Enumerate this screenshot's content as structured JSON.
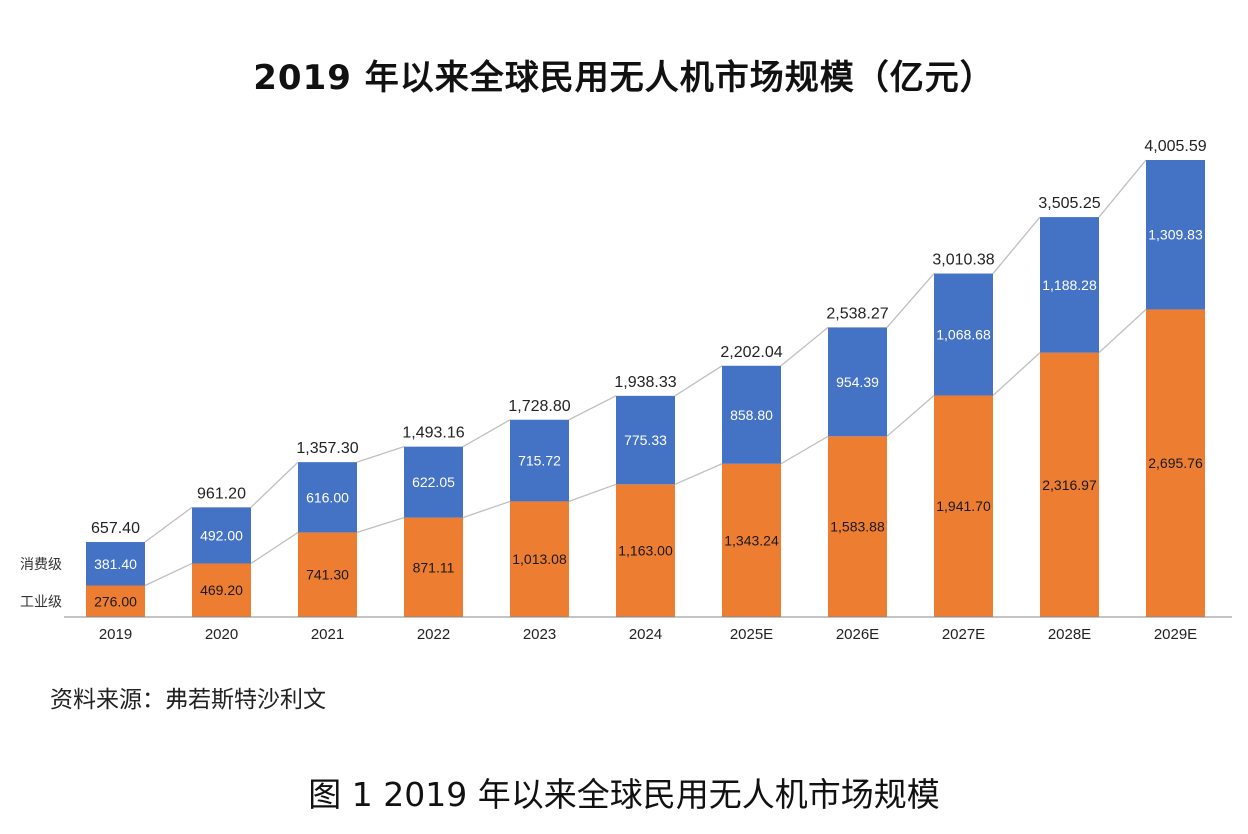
{
  "title": "2019 年以来全球民用无人机市场规模（亿元）",
  "source": "资料来源：弗若斯特沙利文",
  "caption": "图 1 2019 年以来全球民用无人机市场规模",
  "colors": {
    "consumer": "#4472C4",
    "industrial": "#ED7D31",
    "connector": "#BFBFBF",
    "axis": "#888888"
  },
  "chart_data": {
    "type": "bar",
    "stacked": true,
    "title": "2019 年以来全球民用无人机市场规模（亿元）",
    "categories": [
      "2019",
      "2020",
      "2021",
      "2022",
      "2023",
      "2024",
      "2025E",
      "2026E",
      "2027E",
      "2028E",
      "2029E"
    ],
    "series": [
      {
        "name": "工业级",
        "values": [
          276.0,
          469.2,
          741.3,
          871.11,
          1013.08,
          1163.0,
          1343.24,
          1583.88,
          1941.7,
          2316.97,
          2695.76
        ],
        "labels": [
          "276.00",
          "469.20",
          "741.30",
          "871.11",
          "1,013.08",
          "1,163.00",
          "1,343.24",
          "1,583.88",
          "1,941.70",
          "2,316.97",
          "2,695.76"
        ]
      },
      {
        "name": "消费级",
        "values": [
          381.4,
          492.0,
          616.0,
          622.05,
          715.72,
          775.33,
          858.8,
          954.39,
          1068.68,
          1188.28,
          1309.83
        ],
        "labels": [
          "381.40",
          "492.00",
          "616.00",
          "622.05",
          "715.72",
          "775.33",
          "858.80",
          "954.39",
          "1,068.68",
          "1,188.28",
          "1,309.83"
        ]
      }
    ],
    "totals": [
      657.4,
      961.2,
      1357.3,
      1493.16,
      1728.8,
      1938.33,
      2202.04,
      2538.27,
      3010.38,
      3505.25,
      4005.59
    ],
    "total_labels": [
      "657.40",
      "961.20",
      "1,357.30",
      "1,493.16",
      "1,728.80",
      "1,938.33",
      "2,202.04",
      "2,538.27",
      "3,010.38",
      "3,505.25",
      "4,005.59"
    ],
    "ylim": [
      0,
      4005.59
    ],
    "legend": "left-inline",
    "grid": false
  }
}
